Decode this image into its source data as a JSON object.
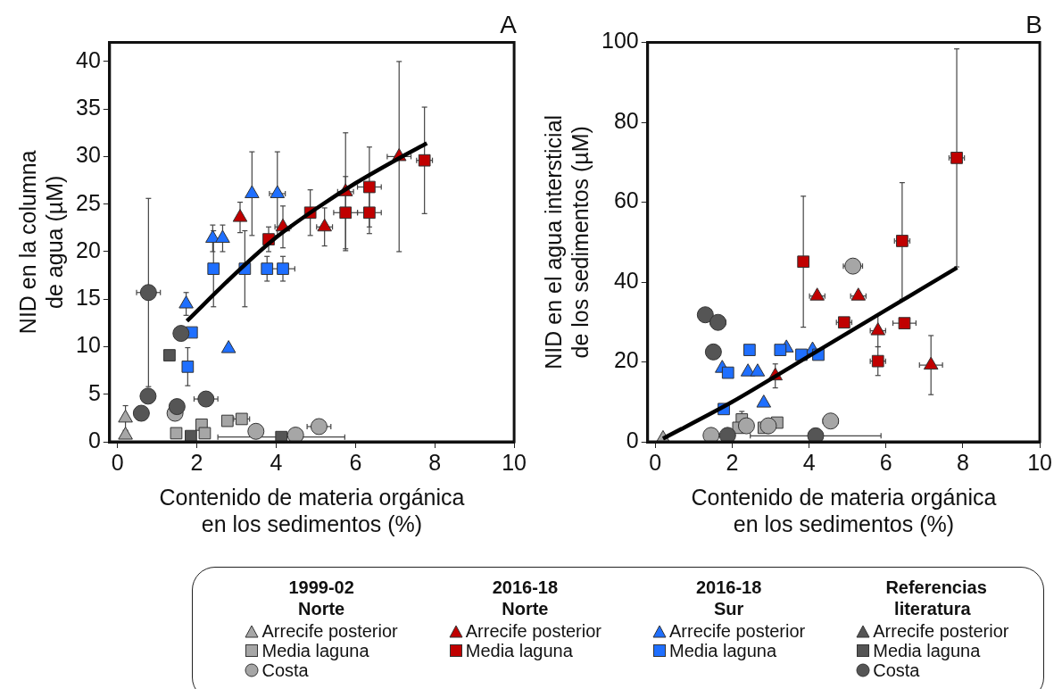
{
  "chart_data": [
    {
      "type": "scatter",
      "title": "A",
      "xlabel": "Contenido de materia orgánica en los sedimentos (%)",
      "ylabel": "NID en la columna de agua (µM)",
      "xlim": [
        -0.2,
        10
      ],
      "xticks": [
        0,
        2,
        4,
        6,
        8,
        10
      ],
      "ylim": [
        0,
        42
      ],
      "yticks": [
        0,
        5,
        10,
        15,
        20,
        25,
        30,
        35,
        40
      ],
      "grid": false,
      "legend": "bottom",
      "annotations": [
        "1999-02 Norte",
        "2016-18 Norte",
        "2016-18 Sur",
        "Referencias literatura"
      ],
      "series": [
        {
          "name": "Arrecife posterior",
          "color": "#a6a6a6",
          "marker": "triangle",
          "x": [
            0.2,
            0.2
          ],
          "values": [
            2.5,
            0.7
          ],
          "errors": [
            1.3,
            null
          ]
        },
        {
          "name": "Media laguna",
          "color": "#a6a6a6",
          "marker": "square",
          "x": [
            1.48,
            2.12,
            2.2,
            2.77,
            3.13
          ],
          "values": [
            0.9,
            1.8,
            0.9,
            2.2,
            2.4
          ],
          "xerrors": [
            null,
            null,
            null,
            null,
            0.2
          ]
        },
        {
          "name": "Costa",
          "color": "#a6a6a6",
          "marker": "circle",
          "x": [
            1.45,
            3.49,
            4.49,
            5.08
          ],
          "values": [
            3.0,
            1.1,
            0.7,
            1.6
          ],
          "errors": [
            null,
            null,
            null,
            0.5
          ],
          "xerrors": [
            null,
            null,
            null,
            0.3
          ]
        },
        {
          "name": "Arrecife posterior",
          "color": "#c00000",
          "marker": "triangle",
          "x": [
            3.09,
            4.17,
            5.22,
            5.75,
            7.1
          ],
          "values": [
            23.6,
            22.6,
            22.6,
            26.3,
            30.0
          ],
          "errors": [
            1.6,
            2.2,
            2.0,
            6.2,
            10.0
          ],
          "xerrors": [
            null,
            0.2,
            0.2,
            0.2,
            0.3
          ]
        },
        {
          "name": "Media laguna",
          "color": "#c00000",
          "marker": "square",
          "x": [
            3.81,
            4.86,
            5.75,
            6.35,
            6.35,
            7.74
          ],
          "values": [
            21.3,
            24.1,
            24.1,
            26.8,
            24.1,
            29.6
          ],
          "errors": [
            1.3,
            2.4,
            3.8,
            4.2,
            2.2,
            5.6
          ],
          "xerrors": [
            null,
            null,
            0.3,
            0.3,
            0.3,
            0.2
          ]
        },
        {
          "name": "Arrecife posterior",
          "color": "#1f6fff",
          "marker": "triangle",
          "x": [
            1.73,
            2.4,
            2.65,
            3.39,
            4.03,
            2.8
          ],
          "values": [
            14.5,
            21.4,
            21.4,
            26.1,
            26.1,
            9.8
          ],
          "errors": [
            1.2,
            1.4,
            1.4,
            4.4,
            4.4,
            null
          ],
          "xerrors": [
            null,
            null,
            null,
            null,
            0.2,
            null
          ]
        },
        {
          "name": "Media laguna",
          "color": "#1f6fff",
          "marker": "square",
          "x": [
            1.87,
            1.77,
            2.42,
            3.21,
            3.77,
            4.17
          ],
          "values": [
            11.5,
            7.9,
            18.2,
            18.2,
            18.2,
            18.2
          ],
          "errors": [
            null,
            2.0,
            4.0,
            4.0,
            1.3,
            1.3
          ],
          "xerrors": [
            0.1,
            null,
            null,
            null,
            null,
            0.3
          ]
        },
        {
          "name": "Arrecife posterior",
          "color": "#555555",
          "marker": "triangle"
        },
        {
          "name": "Media laguna",
          "color": "#555555",
          "marker": "square",
          "x": [
            1.31,
            1.85,
            4.13
          ],
          "values": [
            9.1,
            0.6,
            0.5
          ],
          "xerrors": [
            null,
            null,
            1.6
          ]
        },
        {
          "name": "Costa",
          "color": "#555555",
          "marker": "circle",
          "x": [
            0.78,
            0.6,
            0.77,
            1.5,
            1.6,
            2.23
          ],
          "values": [
            15.7,
            3.0,
            4.8,
            3.7,
            11.4,
            4.5
          ],
          "errors": [
            9.9,
            null,
            null,
            null,
            null,
            null
          ],
          "xerrors": [
            0.3,
            null,
            null,
            null,
            null,
            0.3
          ]
        },
        {
          "type": "line",
          "color": "#000000",
          "marker": "none",
          "x": [
            1.75,
            3,
            4,
            5,
            6,
            7,
            7.8
          ],
          "values": [
            12.7,
            17.8,
            21.5,
            24.5,
            27.2,
            29.6,
            31.4
          ]
        }
      ]
    },
    {
      "type": "scatter",
      "title": "B",
      "xlabel": "Contenido de materia orgánica en los sedimentos (%)",
      "ylabel": "NID en el agua intersticial de los sedimentos (µM)",
      "xlim": [
        -0.2,
        10
      ],
      "xticks": [
        0,
        2,
        4,
        6,
        8,
        10
      ],
      "ylim": [
        0,
        100
      ],
      "yticks": [
        0,
        20,
        40,
        60,
        80,
        100
      ],
      "grid": false,
      "series": [
        {
          "color": "#a6a6a6",
          "marker": "triangle",
          "x": [
            0.2
          ],
          "values": [
            0.8
          ]
        },
        {
          "color": "#a6a6a6",
          "marker": "square",
          "x": [
            2.25,
            2.16,
            2.82,
            3.17
          ],
          "values": [
            5.6,
            3.5,
            3.5,
            4.8
          ],
          "errors": [
            2.0,
            null,
            null,
            null
          ]
        },
        {
          "color": "#a6a6a6",
          "marker": "circle",
          "x": [
            1.45,
            2.37,
            2.94,
            4.56,
            5.14
          ],
          "values": [
            1.6,
            4.0,
            4.0,
            5.2,
            44
          ],
          "errors": [
            null,
            null,
            null,
            1.2,
            null
          ],
          "xerrors": [
            null,
            null,
            null,
            0.2,
            0.25
          ]
        },
        {
          "color": "#c00000",
          "marker": "triangle",
          "x": [
            3.12,
            4.21,
            5.28,
            5.79,
            7.17
          ],
          "values": [
            16.5,
            36.5,
            36.5,
            27.8,
            19.2
          ],
          "errors": [
            3.0,
            null,
            null,
            4.0,
            7.4
          ],
          "xerrors": [
            null,
            0.2,
            0.2,
            0.2,
            0.3
          ]
        },
        {
          "color": "#c00000",
          "marker": "square",
          "x": [
            3.85,
            4.91,
            5.79,
            6.42,
            6.48,
            7.84
          ],
          "values": [
            45.1,
            29.9,
            20.2,
            50.3,
            29.7,
            71.1
          ],
          "errors": [
            16.4,
            null,
            3.6,
            14.6,
            null,
            27.3
          ],
          "xerrors": [
            null,
            0.2,
            0.2,
            0.2,
            0.3,
            0.2
          ]
        },
        {
          "color": "#1f6fff",
          "marker": "triangle",
          "x": [
            1.74,
            2.41,
            2.66,
            3.41,
            4.09,
            2.82
          ],
          "values": [
            18.4,
            17.5,
            17.5,
            23.5,
            23.0,
            9.7
          ]
        },
        {
          "color": "#1f6fff",
          "marker": "square",
          "x": [
            1.78,
            1.89,
            2.45,
            3.25,
            3.8,
            4.24
          ],
          "values": [
            8.2,
            17.3,
            23.0,
            23.0,
            21.8,
            21.8
          ],
          "errors": [
            1.0,
            null,
            null,
            null,
            null,
            null
          ]
        },
        {
          "color": "#555555",
          "marker": "circle",
          "x": [
            1.3,
            1.63,
            1.51,
            1.88,
            4.17
          ],
          "values": [
            31.8,
            29.9,
            22.5,
            1.6,
            1.5
          ],
          "xerrors": [
            null,
            0.2,
            null,
            null,
            1.7
          ]
        },
        {
          "type": "line",
          "color": "#000000",
          "marker": "none",
          "x": [
            0.2,
            2,
            4,
            6,
            7.85
          ],
          "values": [
            0.8,
            10,
            21.5,
            33,
            43.6
          ]
        }
      ]
    }
  ]
}
